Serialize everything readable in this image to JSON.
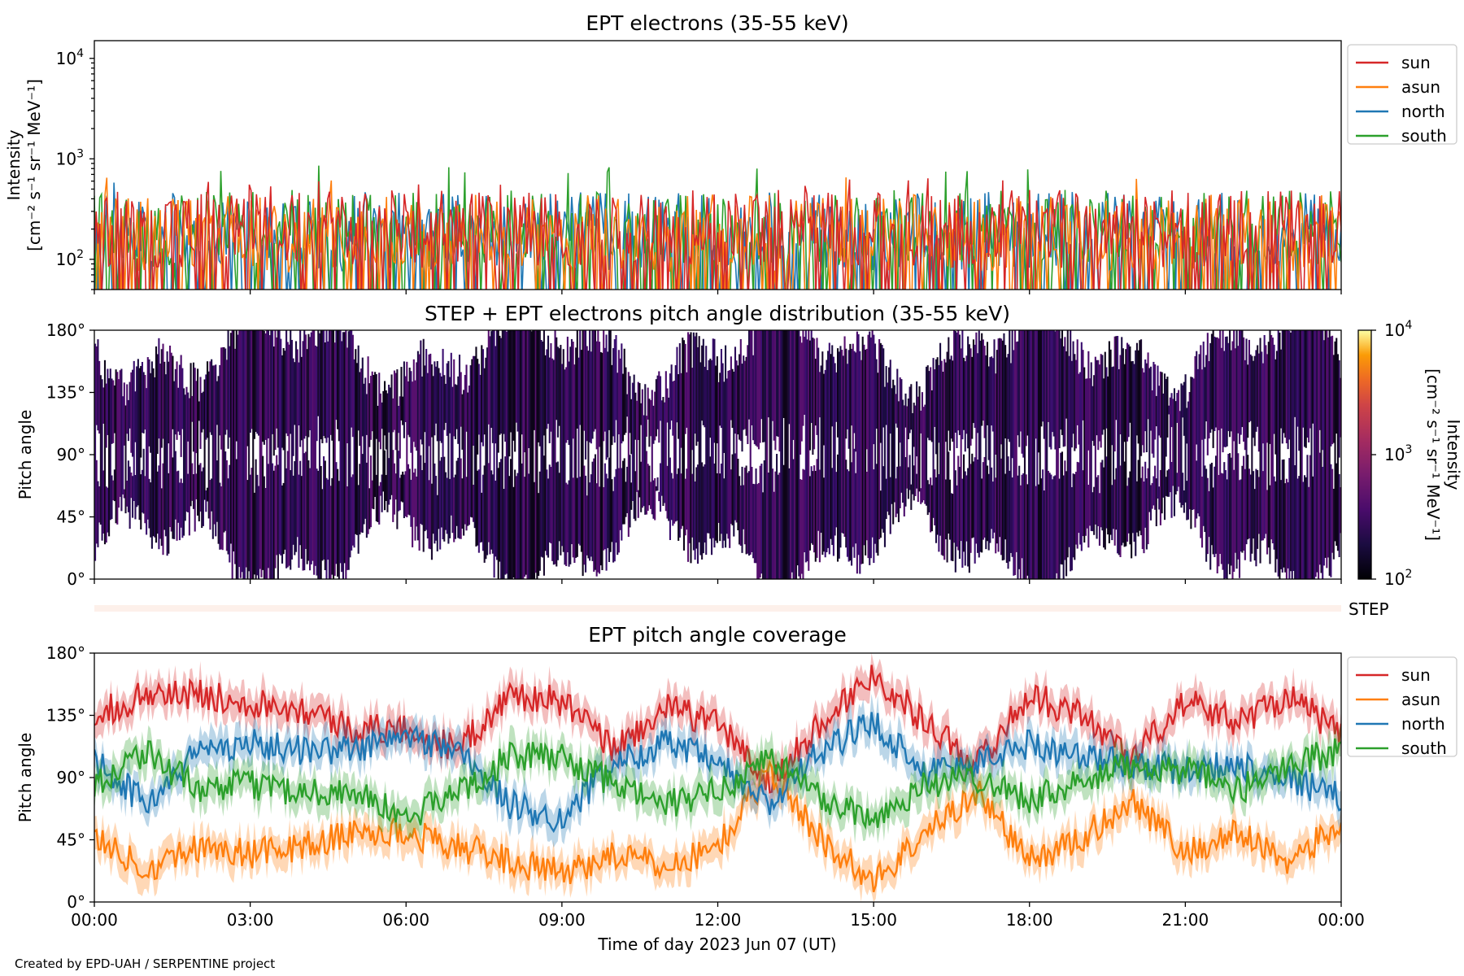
{
  "credit": "Created by EPD-UAH / SERPENTINE project",
  "colors": {
    "sun": "#d62728",
    "asun": "#ff7f0e",
    "north": "#1f77b4",
    "south": "#2ca02c",
    "step_bar": "#fdf0ea"
  },
  "chart_data": [
    {
      "type": "line",
      "title": "EPT electrons (35-55 keV)",
      "ylabel_line1": "Intensity",
      "ylabel_line2": "[cm⁻² s⁻¹ sr⁻¹ MeV⁻¹]",
      "yscale": "log",
      "ylim": [
        50,
        15000
      ],
      "yticks": [
        {
          "value": 100,
          "base": "10",
          "exp": "2"
        },
        {
          "value": 1000,
          "base": "10",
          "exp": "3"
        },
        {
          "value": 10000,
          "base": "10",
          "exp": "4"
        }
      ],
      "xlim_hours": [
        0,
        24
      ],
      "legend_position": "outside right",
      "series": [
        {
          "name": "sun",
          "color_key": "sun",
          "typical": 200,
          "max": 650
        },
        {
          "name": "asun",
          "color_key": "asun",
          "typical": 180,
          "max": 720
        },
        {
          "name": "north",
          "color_key": "north",
          "typical": 190,
          "max": 650
        },
        {
          "name": "south",
          "color_key": "south",
          "typical": 200,
          "max": 900
        }
      ],
      "legend": [
        "sun",
        "asun",
        "north",
        "south"
      ]
    },
    {
      "type": "heatmap",
      "title": "STEP + EPT electrons pitch angle distribution (35-55 keV)",
      "ylabel": "Pitch angle",
      "ylim": [
        0,
        180
      ],
      "yticks": [
        "0°",
        "45°",
        "90°",
        "135°",
        "180°"
      ],
      "colormap": "inferno",
      "colorbar": {
        "scale": "log",
        "range": [
          100,
          10000
        ],
        "label_line1": "Intensity",
        "label_line2": "[cm⁻² s⁻¹ sr⁻¹ MeV⁻¹]",
        "ticks": [
          {
            "base": "10",
            "exp": "2"
          },
          {
            "base": "10",
            "exp": "3"
          },
          {
            "base": "10",
            "exp": "4"
          }
        ]
      },
      "typical_intensity": 250
    },
    {
      "type": "bar",
      "label": "STEP"
    },
    {
      "type": "line",
      "title": "EPT pitch angle coverage",
      "ylabel": "Pitch angle",
      "ylim": [
        0,
        180
      ],
      "yticks": [
        "0°",
        "45°",
        "90°",
        "135°",
        "180°"
      ],
      "xlabel": "Time of day 2023 Jun 07 (UT)",
      "xticks": [
        "00:00",
        "03:00",
        "06:00",
        "09:00",
        "12:00",
        "15:00",
        "18:00",
        "21:00",
        "00:00"
      ],
      "legend": [
        "sun",
        "asun",
        "north",
        "south"
      ],
      "legend_position": "outside right",
      "x_hours": [
        0,
        1,
        2,
        3,
        4,
        5,
        6,
        7,
        8,
        9,
        10,
        11,
        12,
        13,
        14,
        15,
        16,
        17,
        18,
        19,
        20,
        21,
        22,
        23,
        24
      ],
      "series": [
        {
          "name": "sun",
          "color_key": "sun",
          "values": [
            135,
            150,
            150,
            145,
            140,
            125,
            125,
            110,
            150,
            145,
            110,
            140,
            130,
            85,
            130,
            165,
            130,
            100,
            150,
            135,
            105,
            145,
            130,
            150,
            120
          ]
        },
        {
          "name": "asun",
          "color_key": "asun",
          "values": [
            45,
            25,
            40,
            35,
            40,
            50,
            50,
            40,
            30,
            20,
            35,
            25,
            40,
            95,
            45,
            15,
            50,
            80,
            30,
            45,
            75,
            35,
            50,
            30,
            55
          ]
        },
        {
          "name": "north",
          "color_key": "north",
          "values": [
            105,
            70,
            110,
            115,
            110,
            110,
            120,
            110,
            70,
            60,
            100,
            115,
            100,
            70,
            110,
            130,
            95,
            100,
            115,
            105,
            100,
            95,
            100,
            90,
            75
          ]
        },
        {
          "name": "south",
          "color_key": "south",
          "values": [
            85,
            110,
            80,
            85,
            80,
            80,
            60,
            80,
            105,
            105,
            85,
            70,
            80,
            105,
            75,
            60,
            85,
            90,
            75,
            85,
            100,
            95,
            80,
            100,
            110
          ]
        }
      ]
    }
  ]
}
